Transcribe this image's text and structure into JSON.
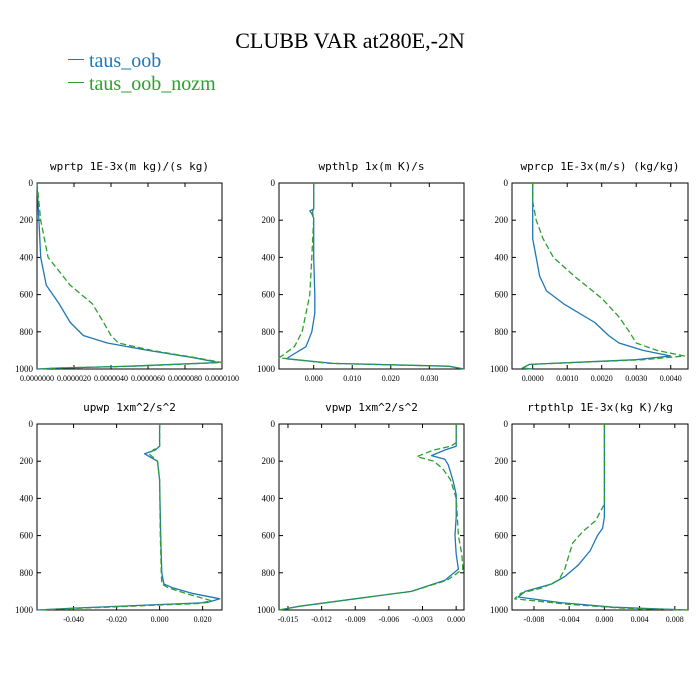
{
  "title": "CLUBB VAR at280E,-2N",
  "legend": [
    {
      "label": "taus_oob",
      "color": "#1f77b4"
    },
    {
      "label": "taus_oob_nozm",
      "color": "#2ca02c"
    }
  ],
  "colors": {
    "taus_oob": "#1f77b4",
    "taus_oob_nozm": "#2ca02c"
  },
  "chart_data": [
    {
      "type": "line",
      "title": "wprtp  1E-3x(m kg)/(s kg)",
      "xlim": [
        0,
        1e-05
      ],
      "ylim": [
        1000,
        0
      ],
      "yticks": [
        0,
        200,
        400,
        600,
        800,
        1000
      ],
      "xticks": [
        {
          "v": 0.0,
          "label": "0.0000000"
        },
        {
          "v": 2e-06,
          "label": "0.0000020"
        },
        {
          "v": 4e-06,
          "label": "0.0000040"
        },
        {
          "v": 6e-06,
          "label": "0.0000060"
        },
        {
          "v": 8e-06,
          "label": "0.0000080"
        },
        {
          "v": 1e-05,
          "label": "0.0000100"
        }
      ],
      "series": [
        {
          "name": "taus_oob",
          "points": [
            [
              0,
              0
            ],
            [
              1e-07,
              200
            ],
            [
              2e-07,
              400
            ],
            [
              5e-07,
              550
            ],
            [
              1.2e-06,
              650
            ],
            [
              1.8e-06,
              750
            ],
            [
              2.5e-06,
              820
            ],
            [
              3.8e-06,
              860
            ],
            [
              6e-06,
              900
            ],
            [
              8.5e-06,
              940
            ],
            [
              9.8e-06,
              965
            ],
            [
              5e-06,
              985
            ],
            [
              1e-06,
              995
            ],
            [
              0,
              1000
            ]
          ]
        },
        {
          "name": "taus_oob_nozm",
          "points": [
            [
              0,
              0
            ],
            [
              2e-07,
              200
            ],
            [
              6e-07,
              400
            ],
            [
              1.8e-06,
              550
            ],
            [
              3e-06,
              650
            ],
            [
              3.6e-06,
              750
            ],
            [
              4e-06,
              820
            ],
            [
              4.4e-06,
              860
            ],
            [
              6.2e-06,
              900
            ],
            [
              8.6e-06,
              940
            ],
            [
              1e-05,
              965
            ],
            [
              5.2e-06,
              985
            ],
            [
              1e-06,
              995
            ],
            [
              0,
              1000
            ]
          ]
        }
      ]
    },
    {
      "type": "line",
      "title": "wpthlp  1x(m K)/s",
      "xlim": [
        -0.009,
        0.039
      ],
      "ylim": [
        1000,
        0
      ],
      "yticks": [
        0,
        200,
        400,
        600,
        800,
        1000
      ],
      "xticks": [
        {
          "v": 0.0,
          "label": "0.000"
        },
        {
          "v": 0.01,
          "label": "0.010"
        },
        {
          "v": 0.02,
          "label": "0.020"
        },
        {
          "v": 0.03,
          "label": "0.030"
        }
      ],
      "series": [
        {
          "name": "taus_oob",
          "points": [
            [
              0,
              0
            ],
            [
              0,
              100
            ],
            [
              0,
              140
            ],
            [
              -0.001,
              150
            ],
            [
              -0.0005,
              165
            ],
            [
              0,
              190
            ],
            [
              0,
              400
            ],
            [
              0.0003,
              600
            ],
            [
              0.0003,
              700
            ],
            [
              -0.0005,
              800
            ],
            [
              -0.002,
              880
            ],
            [
              -0.006,
              930
            ],
            [
              -0.007,
              945
            ],
            [
              0.005,
              970
            ],
            [
              0.035,
              985
            ],
            [
              0.039,
              1000
            ]
          ]
        },
        {
          "name": "taus_oob_nozm",
          "points": [
            [
              0,
              0
            ],
            [
              0,
              140
            ],
            [
              -0.0003,
              155
            ],
            [
              0,
              190
            ],
            [
              -0.0005,
              400
            ],
            [
              -0.001,
              600
            ],
            [
              -0.002,
              700
            ],
            [
              -0.003,
              800
            ],
            [
              -0.005,
              880
            ],
            [
              -0.008,
              925
            ],
            [
              -0.009,
              940
            ],
            [
              0.004,
              970
            ],
            [
              0.035,
              985
            ],
            [
              0.039,
              1000
            ]
          ]
        }
      ]
    },
    {
      "type": "line",
      "title": "wprcp  1E-3x(m/s) (kg/kg)",
      "xlim": [
        -0.0006,
        0.0045
      ],
      "ylim": [
        1000,
        0
      ],
      "yticks": [
        0,
        200,
        400,
        600,
        800,
        1000
      ],
      "xticks": [
        {
          "v": 0.0,
          "label": "0.0000"
        },
        {
          "v": 0.001,
          "label": "0.0010"
        },
        {
          "v": 0.002,
          "label": "0.0020"
        },
        {
          "v": 0.003,
          "label": "0.0030"
        },
        {
          "v": 0.004,
          "label": "0.0040"
        }
      ],
      "series": [
        {
          "name": "taus_oob",
          "points": [
            [
              0,
              0
            ],
            [
              0,
              100
            ],
            [
              0,
              300
            ],
            [
              0.0001,
              400
            ],
            [
              0.0002,
              500
            ],
            [
              0.0004,
              580
            ],
            [
              0.0009,
              650
            ],
            [
              0.0018,
              750
            ],
            [
              0.0022,
              820
            ],
            [
              0.0025,
              860
            ],
            [
              0.0032,
              900
            ],
            [
              0.004,
              930
            ],
            [
              0.003,
              950
            ],
            [
              -0.0001,
              975
            ],
            [
              -0.0003,
              995
            ],
            [
              0,
              1000
            ]
          ]
        },
        {
          "name": "taus_oob_nozm",
          "points": [
            [
              0,
              0
            ],
            [
              0,
              100
            ],
            [
              0.0001,
              200
            ],
            [
              0.0003,
              300
            ],
            [
              0.0006,
              400
            ],
            [
              0.0012,
              500
            ],
            [
              0.002,
              620
            ],
            [
              0.0025,
              720
            ],
            [
              0.0028,
              800
            ],
            [
              0.003,
              860
            ],
            [
              0.0036,
              900
            ],
            [
              0.0044,
              930
            ],
            [
              0.0032,
              950
            ],
            [
              -0.0001,
              975
            ],
            [
              -0.0003,
              995
            ],
            [
              0,
              1000
            ]
          ]
        }
      ]
    },
    {
      "type": "line",
      "title": "upwp  1xm^2/s^2",
      "xlim": [
        -0.057,
        0.029
      ],
      "ylim": [
        1000,
        0
      ],
      "yticks": [
        0,
        200,
        400,
        600,
        800,
        1000
      ],
      "xticks": [
        {
          "v": -0.04,
          "label": "-0.040"
        },
        {
          "v": -0.02,
          "label": "-0.020"
        },
        {
          "v": 0.0,
          "label": "0.000"
        },
        {
          "v": 0.02,
          "label": "0.020"
        }
      ],
      "series": [
        {
          "name": "taus_oob",
          "points": [
            [
              0,
              0
            ],
            [
              0,
              120
            ],
            [
              -0.002,
              140
            ],
            [
              -0.007,
              160
            ],
            [
              -0.004,
              180
            ],
            [
              -0.001,
              200
            ],
            [
              0,
              300
            ],
            [
              0.0005,
              600
            ],
            [
              0.001,
              800
            ],
            [
              0.002,
              860
            ],
            [
              0.006,
              880
            ],
            [
              0.015,
              910
            ],
            [
              0.028,
              940
            ],
            [
              0.022,
              960
            ],
            [
              -0.04,
              990
            ],
            [
              -0.057,
              1000
            ]
          ]
        },
        {
          "name": "taus_oob_nozm",
          "points": [
            [
              0,
              0
            ],
            [
              0,
              120
            ],
            [
              -0.003,
              140
            ],
            [
              -0.005,
              160
            ],
            [
              -0.003,
              180
            ],
            [
              -0.001,
              200
            ],
            [
              0,
              300
            ],
            [
              0.0003,
              600
            ],
            [
              0.0008,
              800
            ],
            [
              0.001,
              860
            ],
            [
              0.004,
              880
            ],
            [
              0.012,
              910
            ],
            [
              0.024,
              950
            ],
            [
              0.018,
              965
            ],
            [
              -0.04,
              992
            ],
            [
              -0.057,
              1000
            ]
          ]
        }
      ]
    },
    {
      "type": "line",
      "title": "vpwp  1xm^2/s^2",
      "xlim": [
        -0.0158,
        0.0007
      ],
      "ylim": [
        1000,
        0
      ],
      "yticks": [
        0,
        200,
        400,
        600,
        800,
        1000
      ],
      "xticks": [
        {
          "v": -0.015,
          "label": "-0.015"
        },
        {
          "v": -0.012,
          "label": "-0.012"
        },
        {
          "v": -0.009,
          "label": "-0.009"
        },
        {
          "v": -0.006,
          "label": "-0.006"
        },
        {
          "v": -0.003,
          "label": "-0.003"
        },
        {
          "v": 0.0,
          "label": "0.000"
        }
      ],
      "series": [
        {
          "name": "taus_oob",
          "points": [
            [
              0,
              0
            ],
            [
              0,
              100
            ],
            [
              0,
              120
            ],
            [
              -0.001,
              140
            ],
            [
              -0.0022,
              170
            ],
            [
              -0.001,
              190
            ],
            [
              -0.0007,
              220
            ],
            [
              -0.0003,
              300
            ],
            [
              0,
              380
            ],
            [
              0,
              500
            ],
            [
              -0.0001,
              600
            ],
            [
              0,
              700
            ],
            [
              0.0002,
              780
            ],
            [
              -0.001,
              840
            ],
            [
              -0.004,
              900
            ],
            [
              -0.009,
              940
            ],
            [
              -0.014,
              980
            ],
            [
              -0.0158,
              1000
            ]
          ]
        },
        {
          "name": "taus_oob_nozm",
          "points": [
            [
              0,
              0
            ],
            [
              0,
              100
            ],
            [
              -0.0005,
              120
            ],
            [
              -0.002,
              140
            ],
            [
              -0.0035,
              175
            ],
            [
              -0.002,
              200
            ],
            [
              -0.0012,
              240
            ],
            [
              -0.0005,
              300
            ],
            [
              0,
              400
            ],
            [
              0.0002,
              600
            ],
            [
              0.0005,
              700
            ],
            [
              0.0006,
              780
            ],
            [
              -0.0008,
              840
            ],
            [
              -0.004,
              900
            ],
            [
              -0.009,
              940
            ],
            [
              -0.014,
              980
            ],
            [
              -0.0158,
              1000
            ]
          ]
        }
      ]
    },
    {
      "type": "line",
      "title": "rtpthlp  1E-3x(kg K)/kg",
      "xlim": [
        -0.0105,
        0.0095
      ],
      "ylim": [
        1000,
        0
      ],
      "yticks": [
        0,
        200,
        400,
        600,
        800,
        1000
      ],
      "xticks": [
        {
          "v": -0.008,
          "label": "-0.008"
        },
        {
          "v": -0.004,
          "label": "-0.004"
        },
        {
          "v": 0.0,
          "label": "0.000"
        },
        {
          "v": 0.004,
          "label": "0.004"
        },
        {
          "v": 0.008,
          "label": "0.008"
        }
      ],
      "series": [
        {
          "name": "taus_oob",
          "points": [
            [
              0,
              0
            ],
            [
              0,
              300
            ],
            [
              0,
              500
            ],
            [
              -0.0002,
              560
            ],
            [
              -0.0008,
              600
            ],
            [
              -0.0016,
              680
            ],
            [
              -0.003,
              760
            ],
            [
              -0.0045,
              820
            ],
            [
              -0.006,
              860
            ],
            [
              -0.009,
              900
            ],
            [
              -0.0098,
              930
            ],
            [
              -0.005,
              960
            ],
            [
              0.001,
              985
            ],
            [
              0.0095,
              1000
            ]
          ]
        },
        {
          "name": "taus_oob_nozm",
          "points": [
            [
              0,
              0
            ],
            [
              0,
              300
            ],
            [
              0,
              430
            ],
            [
              -0.001,
              520
            ],
            [
              -0.0025,
              580
            ],
            [
              -0.0036,
              640
            ],
            [
              -0.004,
              700
            ],
            [
              -0.0045,
              780
            ],
            [
              -0.0052,
              840
            ],
            [
              -0.007,
              880
            ],
            [
              -0.0095,
              910
            ],
            [
              -0.0102,
              940
            ],
            [
              -0.004,
              970
            ],
            [
              0.002,
              990
            ],
            [
              0.0095,
              1000
            ]
          ]
        }
      ]
    }
  ]
}
